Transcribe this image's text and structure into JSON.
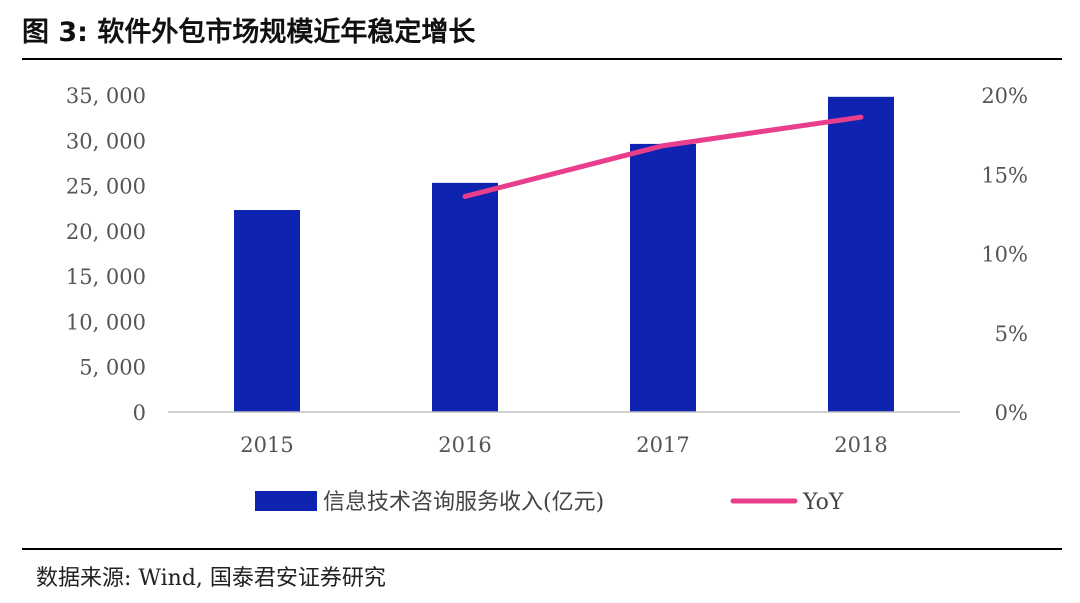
{
  "figure": {
    "title": "图 3: 软件外包市场规模近年稳定增长",
    "source": "数据来源: Wind, 国泰君安证券研究"
  },
  "colors": {
    "bar": "#0e23b0",
    "line": "#e83e8c",
    "axis": "#bfbfbf",
    "text": "#555555"
  },
  "chart_data": {
    "type": "bar",
    "title": "图 3: 软件外包市场规模近年稳定增长",
    "categories": [
      "2015",
      "2016",
      "2017",
      "2018"
    ],
    "series": [
      {
        "name": "信息技术咨询服务收入(亿元)",
        "type": "bar",
        "axis": "left",
        "values": [
          22300,
          25300,
          29600,
          34800
        ]
      },
      {
        "name": "YoY",
        "type": "line",
        "axis": "right",
        "values": [
          null,
          13.6,
          16.8,
          18.6
        ]
      }
    ],
    "y_left": {
      "min": 0,
      "max": 35000,
      "ticks": [
        0,
        5000,
        10000,
        15000,
        20000,
        25000,
        30000,
        35000
      ],
      "tick_labels": [
        "0",
        "5, 000",
        "10, 000",
        "15, 000",
        "20, 000",
        "25, 000",
        "30, 000",
        "35, 000"
      ]
    },
    "y_right": {
      "min": 0,
      "max": 20,
      "ticks": [
        0,
        5,
        10,
        15,
        20
      ],
      "tick_labels": [
        "0%",
        "5%",
        "10%",
        "15%",
        "20%"
      ]
    },
    "grid": false,
    "legend": "bottom"
  }
}
